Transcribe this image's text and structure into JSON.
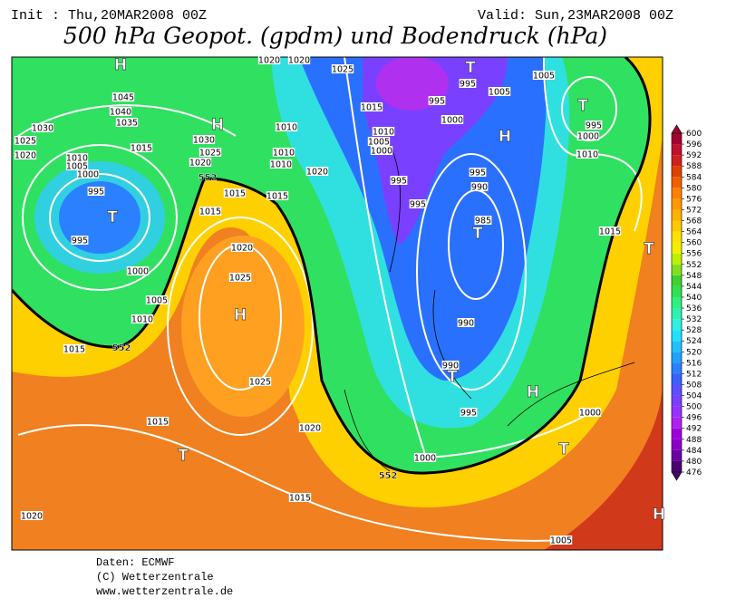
{
  "header": {
    "init": "Init : Thu,20MAR2008 00Z",
    "valid": "Valid: Sun,23MAR2008 00Z",
    "title": "500 hPa Geopot. (gpdm) und Bodendruck (hPa)"
  },
  "colorbar": {
    "levels": [
      476,
      480,
      484,
      488,
      492,
      496,
      500,
      504,
      508,
      512,
      516,
      520,
      524,
      528,
      532,
      536,
      540,
      544,
      548,
      552,
      556,
      560,
      564,
      568,
      572,
      576,
      580,
      584,
      588,
      592,
      596,
      600
    ],
    "colors": [
      "#4b0070",
      "#6a00a0",
      "#8a00c8",
      "#a000e0",
      "#b020f0",
      "#9a30ff",
      "#7a40ff",
      "#5a50ff",
      "#3a60ff",
      "#2a80ff",
      "#20a0ff",
      "#20c0ff",
      "#20e0ff",
      "#30f0e0",
      "#30f0b0",
      "#30f080",
      "#30e050",
      "#40d030",
      "#80e020",
      "#c0f000",
      "#f0f000",
      "#ffe000",
      "#ffc800",
      "#ffb000",
      "#ff9800",
      "#ff8000",
      "#f06000",
      "#e04000",
      "#d02020",
      "#c01030",
      "#a00030"
    ]
  },
  "map": {
    "pressure_labels": [
      "1020",
      "1020",
      "1025",
      "1005",
      "1005",
      "995",
      "995",
      "1000",
      "1045",
      "1040",
      "1035",
      "1030",
      "1025",
      "1015",
      "1030",
      "1025",
      "1020",
      "1010",
      "1010",
      "1010",
      "1020",
      "1015",
      "1010",
      "1005",
      "1000",
      "1010",
      "1000",
      "995",
      "1020",
      "1010",
      "1005",
      "1000",
      "995",
      "995",
      "1000",
      "1015",
      "1015",
      "1015",
      "1020",
      "1025",
      "1005",
      "1010",
      "1015",
      "1025",
      "990",
      "995",
      "985",
      "990",
      "990",
      "995",
      "1000",
      "1015",
      "1000",
      "1015",
      "1020",
      "1015",
      "1020",
      "1005",
      "995",
      "995"
    ],
    "contour_labels": [
      "552",
      "552",
      "552"
    ],
    "centers": [
      "H",
      "T",
      "H",
      "T",
      "H",
      "T",
      "T",
      "H",
      "T",
      "T",
      "H",
      "T",
      "T",
      "H"
    ]
  },
  "footer": [
    "Daten: ECMWF",
    "(C) Wetterzentrale",
    "www.wetterzentrale.de"
  ]
}
